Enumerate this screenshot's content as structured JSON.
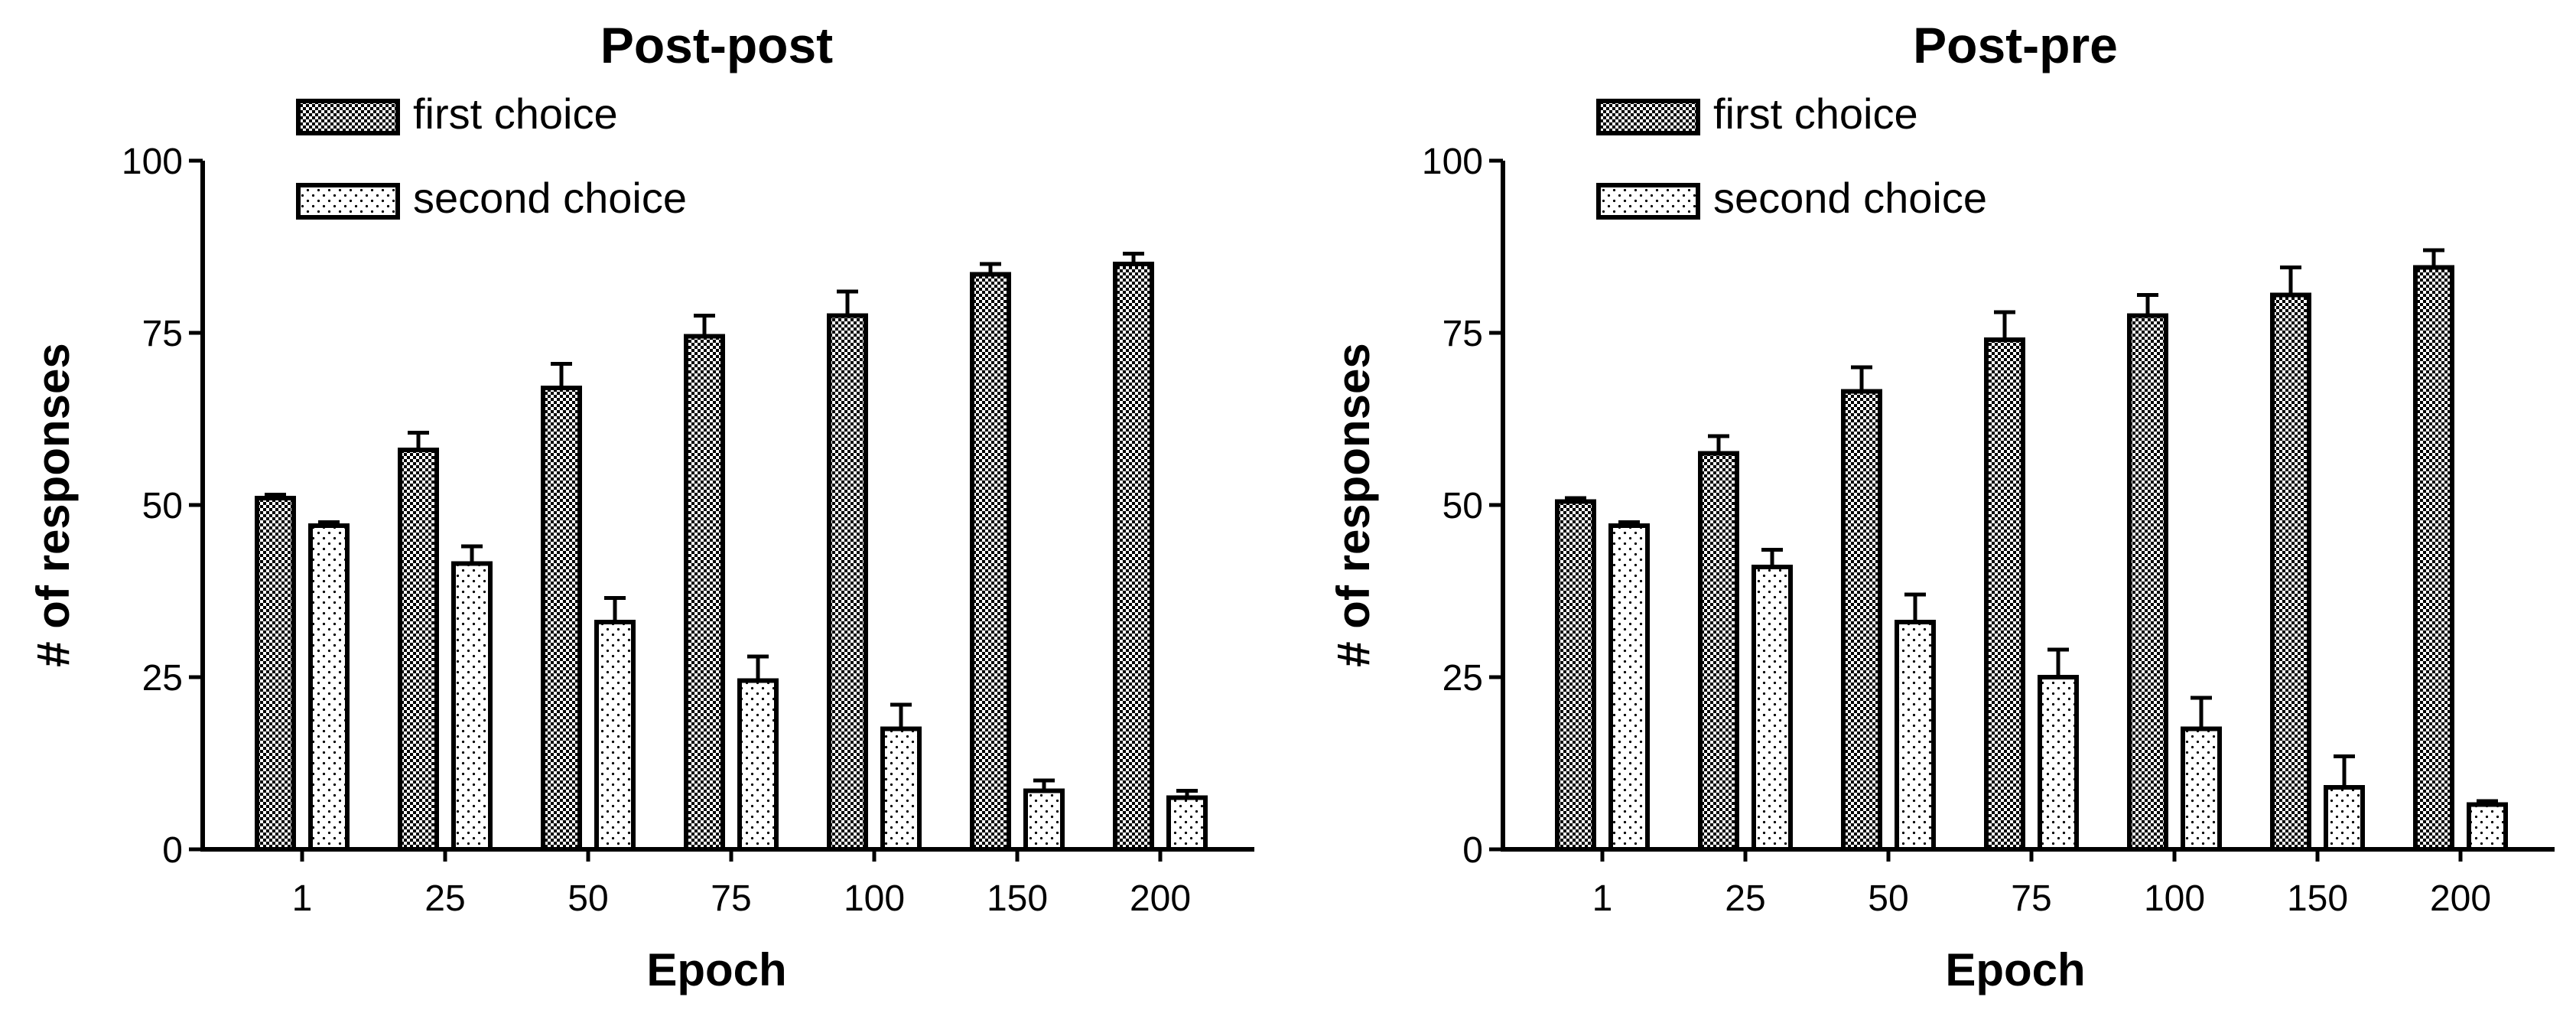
{
  "chart_data": [
    {
      "type": "bar",
      "title": "Post-post",
      "xlabel": "Epoch",
      "ylabel": "# of responses",
      "categories": [
        "1",
        "25",
        "50",
        "75",
        "100",
        "150",
        "200"
      ],
      "yticks": [
        "0",
        "25",
        "50",
        "75",
        "100"
      ],
      "ylim": [
        0,
        100
      ],
      "legend_position": "top-left",
      "series": [
        {
          "name": "first choice",
          "pattern": "checker",
          "values": [
            51,
            58,
            67,
            74.5,
            77.5,
            83.5,
            85
          ],
          "errors": [
            0.5,
            2.5,
            3.5,
            3,
            3.5,
            1.5,
            1.5
          ]
        },
        {
          "name": "second choice",
          "pattern": "dotted",
          "values": [
            47,
            41.5,
            33,
            24.5,
            17.5,
            8.5,
            7.5
          ],
          "errors": [
            0.5,
            2.5,
            3.5,
            3.5,
            3.5,
            1.5,
            1
          ]
        }
      ]
    },
    {
      "type": "bar",
      "title": "Post-pre",
      "xlabel": "Epoch",
      "ylabel": "# of responses",
      "categories": [
        "1",
        "25",
        "50",
        "75",
        "100",
        "150",
        "200"
      ],
      "yticks": [
        "0",
        "25",
        "50",
        "75",
        "100"
      ],
      "ylim": [
        0,
        100
      ],
      "legend_position": "top-left",
      "series": [
        {
          "name": "first choice",
          "pattern": "checker",
          "values": [
            50.5,
            57.5,
            66.5,
            74,
            77.5,
            80.5,
            84.5
          ],
          "errors": [
            0.5,
            2.5,
            3.5,
            4,
            3,
            4,
            2.5
          ]
        },
        {
          "name": "second choice",
          "pattern": "dotted",
          "values": [
            47,
            41,
            33,
            25,
            17.5,
            9,
            6.5
          ],
          "errors": [
            0.5,
            2.5,
            4,
            4,
            4.5,
            4.5,
            0.5
          ]
        }
      ]
    }
  ]
}
